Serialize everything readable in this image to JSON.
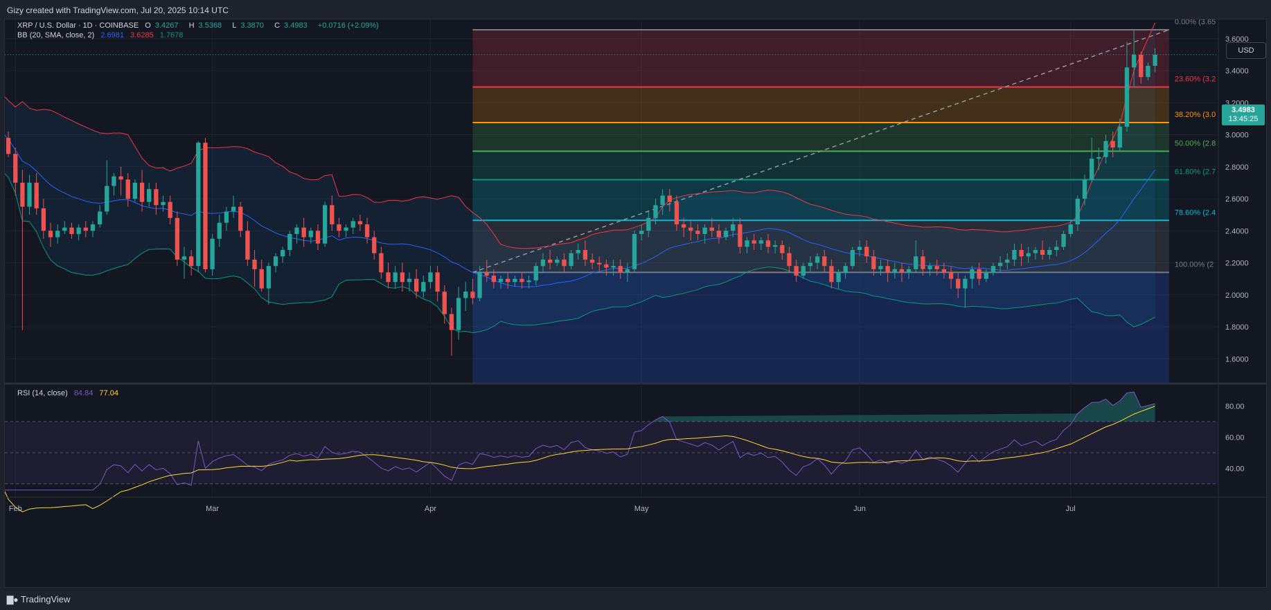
{
  "header": {
    "created_by": "Gizy created with TradingView.com, Jul 20, 2025 10:14 UTC"
  },
  "footer": {
    "brand": "TradingView",
    "brand_icon": "tradingview-logo-icon"
  },
  "currency_button": "USD",
  "legend": {
    "symbol": "XRP / U.S. Dollar · 1D · COINBASE",
    "o_label": "O",
    "o_value": "3.4267",
    "h_label": "H",
    "h_value": "3.5368",
    "l_label": "L",
    "l_value": "3.3870",
    "c_label": "C",
    "c_value": "3.4983",
    "change": "+0.0716 (+2.09%)",
    "bb_title": "BB (20, SMA, close, 2)",
    "bb_basis": "2.6981",
    "bb_upper": "3.6285",
    "bb_lower": "1.7678",
    "rsi_title": "RSI (14, close)",
    "rsi_value": "84.84",
    "rsi_ma": "77.04"
  },
  "price_badge": {
    "price": "3.4983",
    "countdown": "13:45:25"
  },
  "colors": {
    "up": "#26a69a",
    "down": "#ef5350",
    "bb_basis": "#2962ff",
    "bb_upper": "#f23645",
    "bb_lower": "#089981",
    "rsi": "#7e57c2",
    "rsi_ma": "#fdd835"
  },
  "chart_data": {
    "type": "candlestick",
    "symbol": "XRP / U.S. Dollar",
    "interval": "1D",
    "exchange": "COINBASE",
    "y_ticks": [
      "1.6000",
      "1.8000",
      "2.0000",
      "2.2000",
      "2.4000",
      "2.6000",
      "2.8000",
      "3.0000",
      "3.2000",
      "3.4000",
      "3.6000"
    ],
    "ylim": [
      1.45,
      3.72
    ],
    "x_ticks": [
      {
        "label": "Feb",
        "day": 0
      },
      {
        "label": "Mar",
        "day": 28
      },
      {
        "label": "Apr",
        "day": 59
      },
      {
        "label": "May",
        "day": 89
      },
      {
        "label": "Jun",
        "day": 120
      },
      {
        "label": "Jul",
        "day": 150
      }
    ],
    "x_range_days": [
      -1.5,
      171
    ],
    "fibonacci": {
      "start_day": 65,
      "end_day": 164,
      "low": 2.14,
      "high": 3.655,
      "levels": [
        {
          "label": "0.00% (3.65",
          "value": 3.655,
          "color": "#787b86"
        },
        {
          "label": "23.60% (3.2",
          "value": 3.298,
          "color": "#f23645"
        },
        {
          "label": "38.20% (3.0",
          "value": 3.076,
          "color": "#ff9800"
        },
        {
          "label": "50.00% (2.8",
          "value": 2.897,
          "color": "#4caf50"
        },
        {
          "label": "61.80% (2.7",
          "value": 2.719,
          "color": "#089981"
        },
        {
          "label": "78.60% (2.4",
          "value": 2.465,
          "color": "#00bcd4"
        },
        {
          "label": "100.00% (2",
          "value": 2.14,
          "color": "#787b86"
        }
      ]
    },
    "candles": [
      [
        3.12,
        3.15,
        3.06,
        3.05
      ],
      [
        3.06,
        3.1,
        2.98,
        2.97
      ],
      [
        2.98,
        3.02,
        2.88,
        2.86
      ],
      [
        2.88,
        2.92,
        2.7,
        2.62
      ],
      [
        2.7,
        2.78,
        2.55,
        1.78
      ],
      [
        2.55,
        2.75,
        2.7,
        2.5
      ],
      [
        2.7,
        2.76,
        2.54,
        2.5
      ],
      [
        2.54,
        2.6,
        2.4,
        2.35
      ],
      [
        2.4,
        2.45,
        2.36,
        2.3
      ],
      [
        2.36,
        2.44,
        2.4,
        2.32
      ],
      [
        2.4,
        2.46,
        2.42,
        2.38
      ],
      [
        2.42,
        2.45,
        2.38,
        2.35
      ],
      [
        2.38,
        2.44,
        2.42,
        2.34
      ],
      [
        2.42,
        2.46,
        2.4,
        2.36
      ],
      [
        2.4,
        2.46,
        2.44,
        2.36
      ],
      [
        2.44,
        2.56,
        2.52,
        2.42
      ],
      [
        2.52,
        2.84,
        2.68,
        2.5
      ],
      [
        2.68,
        2.76,
        2.74,
        2.62
      ],
      [
        2.74,
        2.8,
        2.72,
        2.62
      ],
      [
        2.72,
        2.76,
        2.6,
        2.55
      ],
      [
        2.6,
        2.72,
        2.7,
        2.58
      ],
      [
        2.7,
        2.78,
        2.58,
        2.52
      ],
      [
        2.58,
        2.7,
        2.66,
        2.55
      ],
      [
        2.66,
        2.7,
        2.56,
        2.5
      ],
      [
        2.56,
        2.62,
        2.58,
        2.52
      ],
      [
        2.58,
        2.62,
        2.48,
        2.44
      ],
      [
        2.48,
        2.52,
        2.22,
        2.18
      ],
      [
        2.22,
        2.3,
        2.24,
        2.1
      ],
      [
        2.24,
        2.28,
        2.18,
        2.12
      ],
      [
        2.18,
        2.96,
        2.95,
        2.14
      ],
      [
        2.95,
        2.98,
        2.16,
        2.14
      ],
      [
        2.16,
        2.38,
        2.35,
        2.12
      ],
      [
        2.35,
        2.5,
        2.45,
        2.3
      ],
      [
        2.45,
        2.55,
        2.52,
        2.4
      ],
      [
        2.52,
        2.62,
        2.55,
        2.48
      ],
      [
        2.55,
        2.58,
        2.4,
        2.36
      ],
      [
        2.4,
        2.46,
        2.22,
        2.18
      ],
      [
        2.22,
        2.28,
        2.16,
        2.05
      ],
      [
        2.16,
        2.22,
        2.04,
        2.02
      ],
      [
        2.04,
        2.2,
        2.18,
        1.94
      ],
      [
        2.18,
        2.26,
        2.24,
        2.14
      ],
      [
        2.24,
        2.3,
        2.28,
        2.2
      ],
      [
        2.28,
        2.4,
        2.38,
        2.24
      ],
      [
        2.38,
        2.44,
        2.42,
        2.32
      ],
      [
        2.42,
        2.48,
        2.36,
        2.3
      ],
      [
        2.36,
        2.42,
        2.4,
        2.32
      ],
      [
        2.4,
        2.44,
        2.32,
        2.28
      ],
      [
        2.32,
        2.58,
        2.56,
        2.3
      ],
      [
        2.56,
        2.62,
        2.44,
        2.4
      ],
      [
        2.44,
        2.48,
        2.4,
        2.36
      ],
      [
        2.4,
        2.44,
        2.42,
        2.36
      ],
      [
        2.42,
        2.48,
        2.46,
        2.38
      ],
      [
        2.46,
        2.5,
        2.44,
        2.4
      ],
      [
        2.44,
        2.48,
        2.36,
        2.32
      ],
      [
        2.36,
        2.4,
        2.26,
        2.22
      ],
      [
        2.26,
        2.3,
        2.14,
        2.1
      ],
      [
        2.14,
        2.2,
        2.08,
        2.04
      ],
      [
        2.08,
        2.18,
        2.14,
        2.04
      ],
      [
        2.14,
        2.2,
        2.08,
        2.02
      ],
      [
        2.08,
        2.14,
        2.1,
        2.02
      ],
      [
        2.1,
        2.16,
        2.02,
        1.98
      ],
      [
        2.02,
        2.12,
        2.08,
        1.98
      ],
      [
        2.08,
        2.18,
        2.14,
        2.04
      ],
      [
        2.14,
        2.18,
        2.02,
        1.96
      ],
      [
        2.02,
        2.06,
        1.88,
        1.82
      ],
      [
        1.88,
        1.92,
        1.78,
        1.62
      ],
      [
        1.78,
        2.05,
        1.98,
        1.72
      ],
      [
        1.98,
        2.08,
        2.02,
        1.9
      ],
      [
        2.02,
        2.1,
        1.98,
        1.94
      ],
      [
        1.98,
        2.18,
        2.14,
        1.96
      ],
      [
        2.14,
        2.22,
        2.12,
        2.08
      ],
      [
        2.12,
        2.16,
        2.08,
        2.04
      ],
      [
        2.08,
        2.12,
        2.1,
        2.04
      ],
      [
        2.1,
        2.14,
        2.08,
        2.04
      ],
      [
        2.08,
        2.12,
        2.1,
        2.05
      ],
      [
        2.1,
        2.14,
        2.08,
        2.04
      ],
      [
        2.08,
        2.12,
        2.09,
        2.04
      ],
      [
        2.09,
        2.2,
        2.18,
        2.06
      ],
      [
        2.18,
        2.26,
        2.22,
        2.14
      ],
      [
        2.22,
        2.28,
        2.2,
        2.16
      ],
      [
        2.2,
        2.24,
        2.22,
        2.18
      ],
      [
        2.22,
        2.26,
        2.18,
        2.14
      ],
      [
        2.18,
        2.28,
        2.26,
        2.16
      ],
      [
        2.26,
        2.32,
        2.28,
        2.22
      ],
      [
        2.28,
        2.34,
        2.22,
        2.18
      ],
      [
        2.22,
        2.26,
        2.2,
        2.16
      ],
      [
        2.2,
        2.24,
        2.19,
        2.15
      ],
      [
        2.19,
        2.22,
        2.17,
        2.12
      ],
      [
        2.17,
        2.22,
        2.18,
        2.12
      ],
      [
        2.18,
        2.22,
        2.14,
        2.1
      ],
      [
        2.14,
        2.2,
        2.16,
        2.08
      ],
      [
        2.16,
        2.4,
        2.38,
        2.14
      ],
      [
        2.38,
        2.44,
        2.4,
        2.34
      ],
      [
        2.4,
        2.52,
        2.48,
        2.36
      ],
      [
        2.48,
        2.6,
        2.56,
        2.44
      ],
      [
        2.56,
        2.66,
        2.62,
        2.5
      ],
      [
        2.62,
        2.66,
        2.58,
        2.52
      ],
      [
        2.58,
        2.62,
        2.44,
        2.4
      ],
      [
        2.44,
        2.48,
        2.42,
        2.36
      ],
      [
        2.42,
        2.46,
        2.4,
        2.34
      ],
      [
        2.4,
        2.44,
        2.38,
        2.34
      ],
      [
        2.38,
        2.44,
        2.42,
        2.32
      ],
      [
        2.42,
        2.48,
        2.4,
        2.36
      ],
      [
        2.4,
        2.44,
        2.36,
        2.32
      ],
      [
        2.36,
        2.42,
        2.4,
        2.34
      ],
      [
        2.4,
        2.48,
        2.44,
        2.36
      ],
      [
        2.44,
        2.48,
        2.3,
        2.26
      ],
      [
        2.3,
        2.36,
        2.34,
        2.26
      ],
      [
        2.34,
        2.38,
        2.32,
        2.28
      ],
      [
        2.32,
        2.36,
        2.34,
        2.28
      ],
      [
        2.34,
        2.38,
        2.3,
        2.26
      ],
      [
        2.3,
        2.34,
        2.31,
        2.26
      ],
      [
        2.31,
        2.34,
        2.26,
        2.22
      ],
      [
        2.26,
        2.3,
        2.18,
        2.14
      ],
      [
        2.18,
        2.22,
        2.12,
        2.08
      ],
      [
        2.12,
        2.2,
        2.18,
        2.1
      ],
      [
        2.18,
        2.24,
        2.2,
        2.14
      ],
      [
        2.2,
        2.26,
        2.24,
        2.16
      ],
      [
        2.24,
        2.28,
        2.18,
        2.14
      ],
      [
        2.18,
        2.22,
        2.08,
        2.04
      ],
      [
        2.08,
        2.16,
        2.14,
        2.04
      ],
      [
        2.14,
        2.2,
        2.18,
        2.1
      ],
      [
        2.18,
        2.3,
        2.28,
        2.16
      ],
      [
        2.28,
        2.34,
        2.3,
        2.24
      ],
      [
        2.3,
        2.34,
        2.24,
        2.2
      ],
      [
        2.24,
        2.28,
        2.16,
        2.12
      ],
      [
        2.16,
        2.22,
        2.18,
        2.12
      ],
      [
        2.18,
        2.22,
        2.14,
        2.08
      ],
      [
        2.14,
        2.2,
        2.16,
        2.1
      ],
      [
        2.16,
        2.2,
        2.14,
        2.08
      ],
      [
        2.14,
        2.18,
        2.16,
        2.1
      ],
      [
        2.16,
        2.34,
        2.24,
        2.14
      ],
      [
        2.24,
        2.28,
        2.16,
        2.12
      ],
      [
        2.16,
        2.2,
        2.18,
        2.12
      ],
      [
        2.18,
        2.22,
        2.16,
        2.12
      ],
      [
        2.16,
        2.2,
        2.14,
        2.1
      ],
      [
        2.14,
        2.18,
        2.1,
        2.04
      ],
      [
        2.1,
        2.14,
        2.04,
        1.98
      ],
      [
        2.04,
        2.12,
        2.1,
        1.92
      ],
      [
        2.1,
        2.18,
        2.16,
        2.04
      ],
      [
        2.16,
        2.2,
        2.1,
        2.06
      ],
      [
        2.1,
        2.16,
        2.14,
        2.08
      ],
      [
        2.14,
        2.2,
        2.18,
        2.12
      ],
      [
        2.18,
        2.24,
        2.2,
        2.14
      ],
      [
        2.2,
        2.26,
        2.22,
        2.16
      ],
      [
        2.22,
        2.32,
        2.28,
        2.18
      ],
      [
        2.28,
        2.32,
        2.24,
        2.18
      ],
      [
        2.24,
        2.3,
        2.26,
        2.2
      ],
      [
        2.26,
        2.3,
        2.28,
        2.22
      ],
      [
        2.28,
        2.34,
        2.25,
        2.22
      ],
      [
        2.25,
        2.3,
        2.28,
        2.22
      ],
      [
        2.28,
        2.34,
        2.3,
        2.24
      ],
      [
        2.3,
        2.4,
        2.38,
        2.28
      ],
      [
        2.38,
        2.46,
        2.44,
        2.36
      ],
      [
        2.44,
        2.62,
        2.6,
        2.4
      ],
      [
        2.6,
        2.75,
        2.72,
        2.56
      ],
      [
        2.72,
        2.98,
        2.85,
        2.7
      ],
      [
        2.85,
        2.92,
        2.86,
        2.78
      ],
      [
        2.86,
        3.0,
        2.96,
        2.82
      ],
      [
        2.96,
        3.02,
        2.92,
        2.86
      ],
      [
        2.92,
        3.1,
        3.05,
        2.9
      ],
      [
        3.05,
        3.58,
        3.42,
        3.02
      ],
      [
        3.42,
        3.65,
        3.5,
        3.3
      ],
      [
        3.5,
        3.52,
        3.36,
        3.32
      ],
      [
        3.36,
        3.45,
        3.43,
        3.34
      ],
      [
        3.43,
        3.54,
        3.5,
        3.39
      ]
    ]
  }
}
